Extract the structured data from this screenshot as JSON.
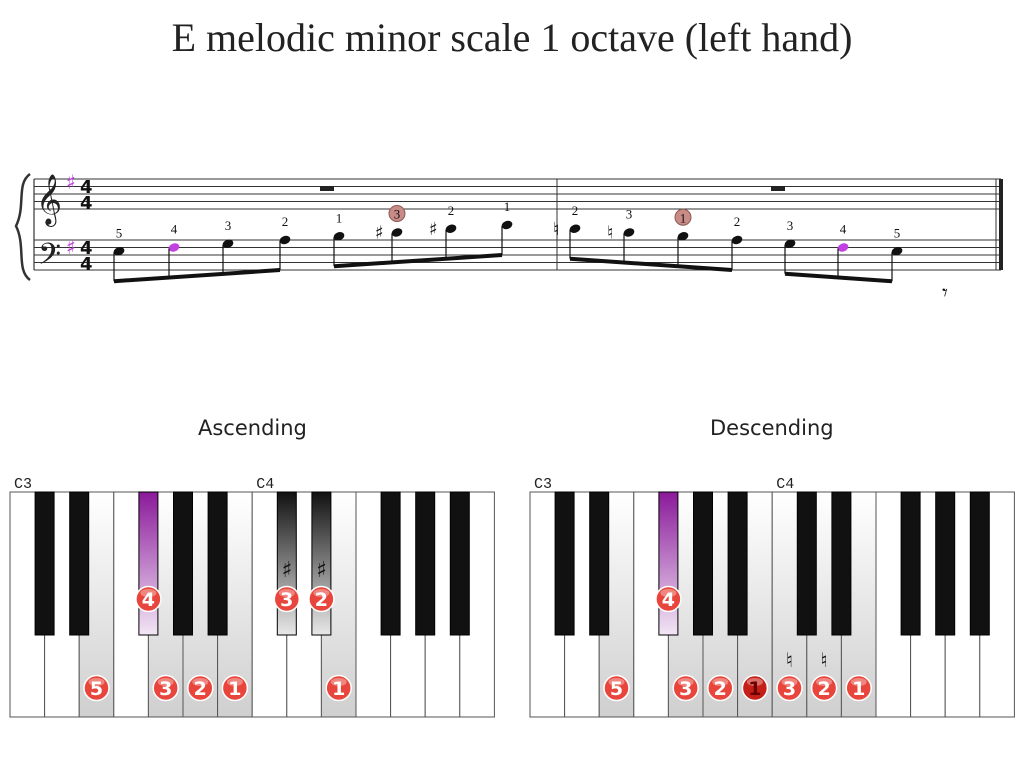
{
  "title": "E melodic minor scale 1 octave (left hand)",
  "sections": {
    "ascending": "Ascending",
    "descending": "Descending"
  },
  "colors": {
    "highlight": "#8a1a9a",
    "finger_ball": "#e8463c",
    "finger_ball_dark": "#c51f18",
    "thumb_circle": "#c98b85",
    "purple_note": "#c040e0"
  },
  "score": {
    "time_signature": [
      "4",
      "4"
    ],
    "key_signature": "♯",
    "notes": [
      {
        "finger": "5",
        "accidental": "",
        "purple": false,
        "circled": false
      },
      {
        "finger": "4",
        "accidental": "",
        "purple": true,
        "circled": false
      },
      {
        "finger": "3",
        "accidental": "",
        "purple": false,
        "circled": false
      },
      {
        "finger": "2",
        "accidental": "",
        "purple": false,
        "circled": false
      },
      {
        "finger": "1",
        "accidental": "",
        "purple": false,
        "circled": false
      },
      {
        "finger": "3",
        "accidental": "♯",
        "purple": false,
        "circled": true
      },
      {
        "finger": "2",
        "accidental": "♯",
        "purple": false,
        "circled": false
      },
      {
        "finger": "1",
        "accidental": "",
        "purple": false,
        "circled": false
      },
      {
        "finger": "2",
        "accidental": "♮",
        "purple": false,
        "circled": false
      },
      {
        "finger": "3",
        "accidental": "♮",
        "purple": false,
        "circled": false
      },
      {
        "finger": "1",
        "accidental": "",
        "purple": false,
        "circled": true
      },
      {
        "finger": "2",
        "accidental": "",
        "purple": false,
        "circled": false
      },
      {
        "finger": "3",
        "accidental": "",
        "purple": false,
        "circled": false
      },
      {
        "finger": "4",
        "accidental": "",
        "purple": true,
        "circled": false
      },
      {
        "finger": "5",
        "accidental": "",
        "purple": false,
        "circled": false
      }
    ]
  },
  "keyboards": [
    {
      "id": "ascending",
      "octave_labels": [
        "C3",
        "C4"
      ],
      "white_keys": [
        {
          "finger": ""
        },
        {
          "finger": ""
        },
        {
          "finger": "5",
          "shaded": true
        },
        {
          "finger": ""
        },
        {
          "finger": "3",
          "shaded": true
        },
        {
          "finger": "2",
          "shaded": true
        },
        {
          "finger": "1",
          "shaded": true
        },
        {
          "finger": ""
        },
        {
          "finger": ""
        },
        {
          "finger": "1",
          "shaded": true
        },
        {
          "finger": ""
        },
        {
          "finger": ""
        },
        {
          "finger": ""
        },
        {
          "finger": ""
        }
      ],
      "black_keys": [
        {
          "finger": ""
        },
        {
          "finger": ""
        },
        {
          "finger": "4",
          "highlight": true
        },
        {
          "finger": ""
        },
        {
          "finger": ""
        },
        {
          "finger": "3",
          "shaded": true,
          "accidental": "♯"
        },
        {
          "finger": "2",
          "shaded": true,
          "accidental": "♯"
        },
        {
          "finger": ""
        },
        {
          "finger": ""
        },
        {
          "finger": ""
        }
      ]
    },
    {
      "id": "descending",
      "octave_labels": [
        "C3",
        "C4"
      ],
      "white_keys": [
        {
          "finger": ""
        },
        {
          "finger": ""
        },
        {
          "finger": "5",
          "shaded": true
        },
        {
          "finger": ""
        },
        {
          "finger": "3",
          "shaded": true
        },
        {
          "finger": "2",
          "shaded": true
        },
        {
          "finger": "1",
          "shaded": true,
          "dark": true
        },
        {
          "finger": "3",
          "shaded": true,
          "accidental": "♮"
        },
        {
          "finger": "2",
          "shaded": true,
          "accidental": "♮"
        },
        {
          "finger": "1",
          "shaded": true
        },
        {
          "finger": ""
        },
        {
          "finger": ""
        },
        {
          "finger": ""
        },
        {
          "finger": ""
        }
      ],
      "black_keys": [
        {
          "finger": ""
        },
        {
          "finger": ""
        },
        {
          "finger": "4",
          "highlight": true
        },
        {
          "finger": ""
        },
        {
          "finger": ""
        },
        {
          "finger": ""
        },
        {
          "finger": ""
        },
        {
          "finger": ""
        },
        {
          "finger": ""
        },
        {
          "finger": ""
        }
      ]
    }
  ]
}
